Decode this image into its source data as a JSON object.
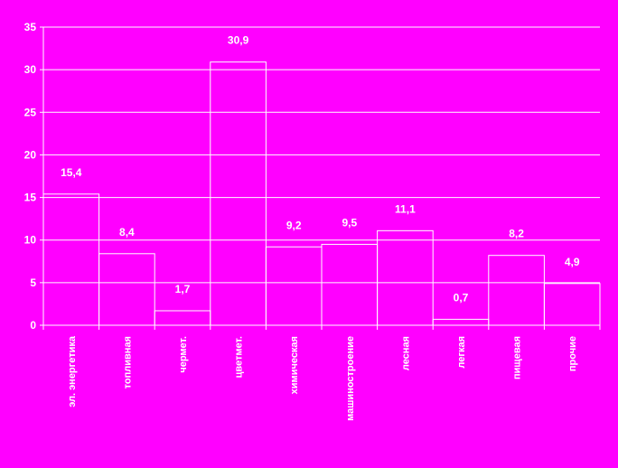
{
  "colors": {
    "background": "#ff00ff",
    "lines": "#ffffff",
    "text": "#ffffff"
  },
  "chart_data": {
    "type": "bar",
    "title": "",
    "xlabel": "",
    "ylabel": "",
    "ylim": [
      0,
      35
    ],
    "y_ticks": [
      0,
      5,
      10,
      15,
      20,
      25,
      30,
      35
    ],
    "grid": true,
    "legend": "none",
    "categories": [
      "эл. энергетика",
      "топливная",
      "чермет.",
      "цветмет.",
      "химическая",
      "машиностроение",
      "лесная",
      "легкая",
      "пищевая",
      "прочие"
    ],
    "values": [
      15.4,
      8.4,
      1.7,
      30.9,
      9.2,
      9.5,
      11.1,
      0.7,
      8.2,
      4.9
    ],
    "data_labels": [
      "15,4",
      "8,4",
      "1,7",
      "30,9",
      "9,2",
      "9,5",
      "11,1",
      "0,7",
      "8,2",
      "4,9"
    ]
  }
}
